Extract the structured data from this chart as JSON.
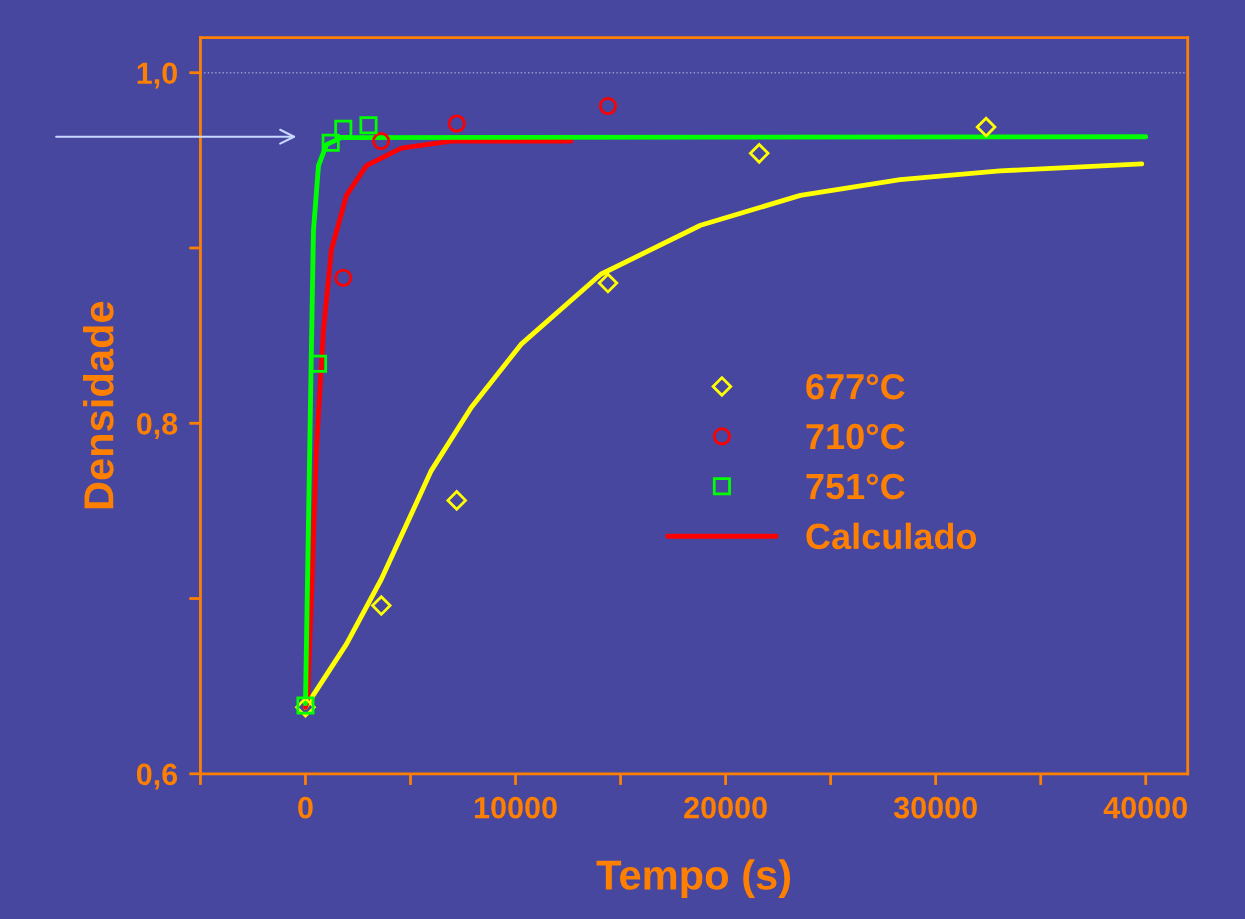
{
  "chart_data": {
    "type": "scatter",
    "xlabel": "Tempo (s)",
    "ylabel": "Densidade",
    "xlim": [
      -5000,
      42000
    ],
    "ylim": [
      0.6,
      1.02
    ],
    "xticks": [
      {
        "value": -5000,
        "label": null
      },
      0,
      {
        "value": 5000,
        "label": null
      },
      10000,
      {
        "value": 15000,
        "label": null
      },
      20000,
      {
        "value": 25000,
        "label": null
      },
      30000,
      {
        "value": 35000,
        "label": null
      },
      40000
    ],
    "yticks": [
      {
        "value": 0.6,
        "label": "0,6"
      },
      {
        "value": 0.7,
        "label": null
      },
      {
        "value": 0.8,
        "label": "0,8"
      },
      {
        "value": 0.9,
        "label": null
      },
      {
        "value": 1.0,
        "label": "1,0"
      }
    ],
    "ref_lines": [
      {
        "axis": "y",
        "value": 1.0,
        "color": "#9a9ad0",
        "line_style": "dotted"
      }
    ],
    "grid": false,
    "legend": "right",
    "series": [
      {
        "type": "line",
        "color": "#ffff00",
        "marker": "none",
        "line_style": "solid",
        "x": [
          0,
          1950,
          3610,
          5990,
          7890,
          10260,
          14060,
          18810,
          23560,
          28310,
          33060,
          39810
        ],
        "values": [
          0.638,
          0.674,
          0.711,
          0.773,
          0.809,
          0.845,
          0.885,
          0.913,
          0.93,
          0.939,
          0.944,
          0.948
        ]
      },
      {
        "type": "line",
        "name": "Calculado",
        "color": "#ff0000",
        "marker": "none",
        "line_style": "solid",
        "x": [
          0,
          100,
          285,
          520,
          855,
          1235,
          1950,
          2900,
          4560,
          6940,
          12640
        ],
        "values": [
          0.638,
          0.642,
          0.7,
          0.785,
          0.853,
          0.899,
          0.93,
          0.947,
          0.957,
          0.961,
          0.961
        ]
      },
      {
        "type": "line",
        "color": "#00ff00",
        "marker": "none",
        "line_style": "solid",
        "x": [
          0,
          240,
          380,
          620,
          1000,
          1700,
          40000
        ],
        "values": [
          0.64,
          0.813,
          0.91,
          0.947,
          0.959,
          0.963,
          0.9635
        ]
      },
      {
        "name": "677°C",
        "color": "#ffff00",
        "marker": "diamond",
        "x": [
          0,
          3610,
          7200,
          14400,
          21600,
          32400
        ],
        "values": [
          0.638,
          0.696,
          0.756,
          0.88,
          0.954,
          0.969
        ]
      },
      {
        "name": "710°C",
        "color": "#ff0000",
        "marker": "circle",
        "x": [
          1800,
          3600,
          7200,
          14400
        ],
        "values": [
          0.883,
          0.961,
          0.971,
          0.981
        ]
      },
      {
        "name": "751°C",
        "color": "#00ff00",
        "marker": "square",
        "x": [
          0,
          600,
          1200,
          1800,
          3000
        ],
        "values": [
          0.639,
          0.834,
          0.96,
          0.968,
          0.97
        ]
      }
    ]
  }
}
